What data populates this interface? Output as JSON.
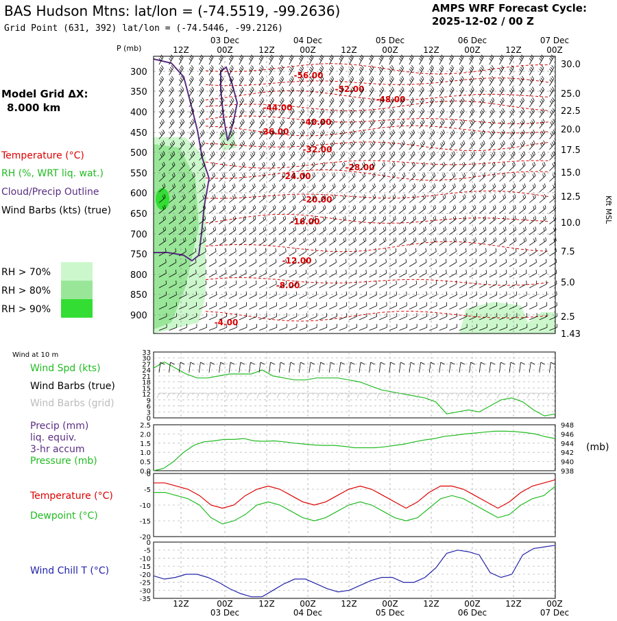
{
  "header": {
    "title": "BAS Hudson Mtns:  lat/lon = (-74.5519, -99.2636)",
    "grid_point": "Grid Point (631, 392) lat/lon = (-74.5446, -99.2126)",
    "forecast_label": "AMPS WRF Forecast Cycle:",
    "forecast_cycle": "2025-12-02 / 00  Z",
    "model_grid_label": "Model Grid ΔX:",
    "model_grid_value": "8.000 km"
  },
  "time_axis": {
    "ticks": [
      "12Z",
      "00Z",
      "12Z",
      "00Z",
      "12Z",
      "00Z",
      "12Z",
      "00Z",
      "12Z",
      "00Z"
    ],
    "dates": [
      "03 Dec",
      "04 Dec",
      "05 Dec",
      "06 Dec",
      "07 Dec"
    ]
  },
  "legend": {
    "temperature": "Temperature (°C)",
    "rh": "RH (%, WRT liq. wat.)",
    "cloud": "Cloud/Precip Outline",
    "wind": "Wind Barbs (kts) (true)",
    "rh70": "RH > 70%",
    "rh80": "RH > 80%",
    "rh90": "RH > 90%",
    "rh_colors": [
      "#ccf7cc",
      "#99e699",
      "#33dd33"
    ],
    "temp_color": "#dd0000",
    "cloud_color": "#5a2d82"
  },
  "lower_legends": {
    "wind_at_10m": "Wind at 10 m",
    "wind_spd": "Wind Spd (kts)",
    "barbs_true": "Wind Barbs (true)",
    "barbs_grid": "Wind Barbs (grid)",
    "precip": "Precip (mm)",
    "liq_equiv": "liq. equiv.",
    "accum": "3-hr accum",
    "pressure": "Pressure (mb)",
    "temperature": "Temperature (°C)",
    "dewpoint": "Dewpoint (°C)",
    "windchill": "Wind Chill T (°C)",
    "mb_unit": "(mb)"
  },
  "chart_data": [
    {
      "type": "heatmap",
      "title": "",
      "ylabel": "P (mb)",
      "y2label": "Kft MSL",
      "pressure_ticks": [
        "300",
        "350",
        "400",
        "450",
        "500",
        "550",
        "600",
        "650",
        "700",
        "750",
        "800",
        "850",
        "900"
      ],
      "height_ticks": [
        "30.0",
        "25.0",
        "22.5",
        "20.0",
        "17.5",
        "15.0",
        "12.5",
        "10.0",
        "7.5",
        "5.0",
        "2.5",
        "1.43"
      ],
      "temperature_contour_labels": [
        {
          "label": "-56.00"
        },
        {
          "label": "-52.00"
        },
        {
          "label": "-48.00"
        },
        {
          "label": "-44.00"
        },
        {
          "label": "-40.00"
        },
        {
          "label": "-36.00"
        },
        {
          "label": "-32.00"
        },
        {
          "label": "-28.00"
        },
        {
          "label": "-24.00"
        },
        {
          "label": "-20.00"
        },
        {
          "label": "-16.00"
        },
        {
          "label": "-12.00"
        },
        {
          "label": "-8.00"
        },
        {
          "label": "-4.00"
        }
      ]
    },
    {
      "type": "line",
      "title": "Wind at 10 m",
      "yticks": [
        "33",
        "30",
        "27",
        "24",
        "21",
        "18",
        "15",
        "12",
        "9",
        "6",
        "3",
        "0"
      ],
      "ylim": [
        0,
        33
      ],
      "series": [
        {
          "name": "Wind Spd (kts)",
          "color": "#22bb22",
          "values": [
            25,
            28,
            25,
            22,
            20,
            20,
            21,
            22,
            22,
            22,
            24,
            21,
            20,
            19,
            19,
            20,
            20,
            20,
            19,
            18,
            16,
            14,
            13,
            12,
            11,
            10,
            8,
            2,
            3,
            4,
            3,
            6,
            9,
            10,
            8,
            4,
            1,
            2
          ]
        }
      ]
    },
    {
      "type": "line",
      "title": "",
      "yticks_left": [
        "2.5",
        "2.0",
        "1.5",
        "1.0",
        "0.5",
        "0.0"
      ],
      "yticks_right": [
        "948",
        "946",
        "944",
        "942",
        "940",
        "938"
      ],
      "ylim_right": [
        938,
        948
      ],
      "series": [
        {
          "name": "Pressure (mb)",
          "color": "#22bb22",
          "values": [
            938,
            938.5,
            940,
            942,
            943.5,
            944.3,
            944.5,
            944.8,
            944.8,
            945,
            944.5,
            944.4,
            944.5,
            944.3,
            944,
            943.8,
            943.6,
            943.5,
            943.5,
            943.3,
            943,
            943,
            943,
            943.2,
            943.5,
            943.8,
            944.3,
            944.7,
            945,
            945.5,
            945.7,
            946,
            946.2,
            946.4,
            946.6,
            946.6,
            946.5,
            946.3,
            946,
            945.4,
            945
          ]
        }
      ]
    },
    {
      "type": "line",
      "title": "",
      "yticks": [
        "0",
        "-5",
        "-10",
        "-15",
        "-20"
      ],
      "ylim": [
        -20,
        0
      ],
      "series": [
        {
          "name": "Temperature (°C)",
          "color": "#dd0000",
          "values": [
            -3,
            -3,
            -4,
            -5,
            -7,
            -10,
            -11,
            -10,
            -7,
            -5,
            -4,
            -5,
            -7,
            -9,
            -10,
            -9,
            -7,
            -5,
            -4,
            -5,
            -7,
            -9,
            -11,
            -9,
            -6,
            -4,
            -4,
            -5,
            -7,
            -9,
            -11,
            -9,
            -6,
            -4,
            -3,
            -2
          ]
        },
        {
          "name": "Dewpoint (°C)",
          "color": "#22bb22",
          "values": [
            -6,
            -6,
            -7,
            -8,
            -10,
            -14,
            -16,
            -15,
            -13,
            -10,
            -9,
            -10,
            -12,
            -14,
            -15,
            -14,
            -12,
            -10,
            -9,
            -10,
            -12,
            -14,
            -15,
            -14,
            -11,
            -8,
            -7,
            -8,
            -10,
            -12,
            -14,
            -13,
            -10,
            -8,
            -7,
            -4
          ]
        }
      ]
    },
    {
      "type": "line",
      "title": "",
      "yticks": [
        "0",
        "-5",
        "-10",
        "-15",
        "-20",
        "-25",
        "-30",
        "-35"
      ],
      "ylim": [
        -35,
        0
      ],
      "series": [
        {
          "name": "Wind Chill T (°C)",
          "color": "#2222aa",
          "values": [
            -21,
            -23,
            -22,
            -20,
            -20,
            -22,
            -25,
            -29,
            -32,
            -34,
            -34,
            -30,
            -26,
            -23,
            -23,
            -26,
            -29,
            -31,
            -30,
            -27,
            -24,
            -22,
            -22,
            -25,
            -25,
            -22,
            -16,
            -7,
            -5,
            -6,
            -8,
            -19,
            -22,
            -20,
            -8,
            -4,
            -3,
            -2
          ]
        }
      ]
    }
  ]
}
